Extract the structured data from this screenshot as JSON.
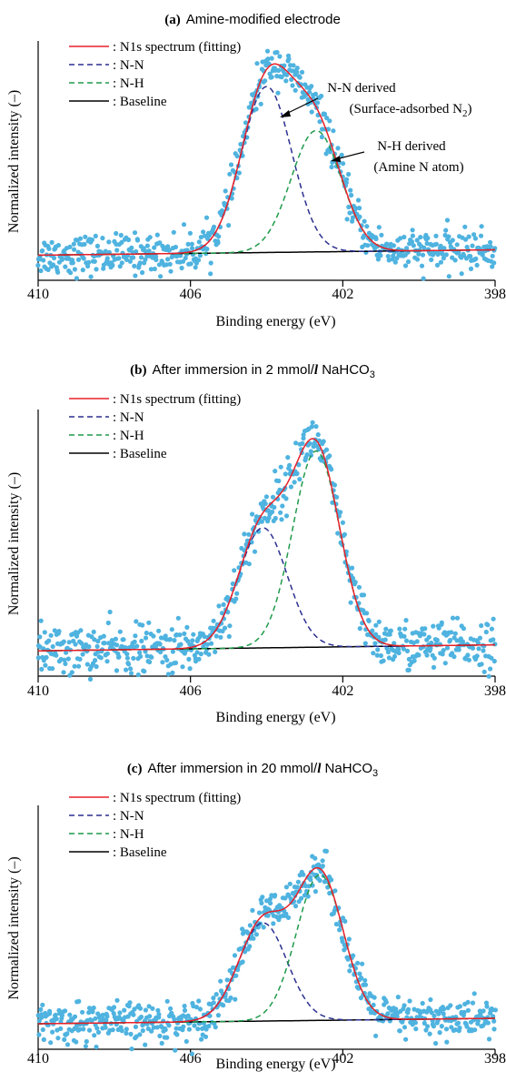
{
  "chart_data": [
    {
      "type": "scatter",
      "title_lead": "(a)",
      "title": "Amine-modified electrode",
      "title_sub": "",
      "xlabel": "Binding energy  (eV)",
      "ylabel": "Normalized intensity  (–)",
      "x_reversed": true,
      "xlim": [
        410,
        398
      ],
      "ylim": [
        0,
        1.25
      ],
      "xticks": [
        "410",
        "406",
        "402",
        "398"
      ],
      "legend": [
        {
          "label": ": N1s spectrum (fitting)",
          "color": "#e8202a",
          "dash": "solid"
        },
        {
          "label": ": N-N",
          "color": "#2b2f8f",
          "dash": "dashed"
        },
        {
          "label": ": N-H",
          "color": "#1f9a4a",
          "dash": "dashed"
        },
        {
          "label": ": Baseline",
          "color": "#000000",
          "dash": "solid"
        }
      ],
      "scatter_color": "#4fb3e0",
      "baseline": {
        "start": 0.1,
        "end": 0.13
      },
      "peaks": [
        {
          "name": "N-N",
          "center": 404.0,
          "height": 0.93,
          "fwhm": 1.55
        },
        {
          "name": "N-H",
          "center": 402.7,
          "height": 0.68,
          "fwhm": 1.55
        }
      ],
      "noise": 0.055,
      "annotations": [
        {
          "line1": "N-N derived",
          "line2": "(Surface-adsorbed N",
          "sub": "2",
          "line2_end": ")"
        },
        {
          "line1": "N-H derived",
          "line2": "(Amine N atom)",
          "sub": "",
          "line2_end": ""
        }
      ]
    },
    {
      "type": "scatter",
      "title_lead": "(b)",
      "title": "After immersion in 2 mmol/",
      "title_unit": "l",
      "title_tail": " NaHCO",
      "title_sub": "3",
      "xlabel": "Binding energy  (eV)",
      "ylabel": "Normalized intensity  (–)",
      "x_reversed": true,
      "xlim": [
        410,
        398
      ],
      "ylim": [
        0,
        1.25
      ],
      "xticks": [
        "410",
        "406",
        "402",
        "398"
      ],
      "legend": [
        {
          "label": ": N1s spectrum (fitting)",
          "color": "#e8202a",
          "dash": "solid"
        },
        {
          "label": ": N-N",
          "color": "#2b2f8f",
          "dash": "dashed"
        },
        {
          "label": ": N-H",
          "color": "#1f9a4a",
          "dash": "dashed"
        },
        {
          "label": ": Baseline",
          "color": "#000000",
          "dash": "solid"
        }
      ],
      "scatter_color": "#4fb3e0",
      "baseline": {
        "start": 0.09,
        "end": 0.12
      },
      "peaks": [
        {
          "name": "N-N",
          "center": 404.1,
          "height": 0.6,
          "fwhm": 1.5
        },
        {
          "name": "N-H",
          "center": 402.7,
          "height": 0.98,
          "fwhm": 1.45
        }
      ],
      "noise": 0.06,
      "annotations": []
    },
    {
      "type": "scatter",
      "title_lead": "(c)",
      "title": "After immersion in 20 mmol/",
      "title_unit": "l",
      "title_tail": " NaHCO",
      "title_sub": "3",
      "xlabel": "Binding energy  (eV)",
      "ylabel": "Normalized intensity  (–)",
      "x_reversed": true,
      "xlim": [
        410,
        398
      ],
      "ylim": [
        0,
        1.25
      ],
      "xticks": [
        "410",
        "406",
        "402",
        "398"
      ],
      "legend": [
        {
          "label": ": N1s spectrum (fitting)",
          "color": "#e8202a",
          "dash": "solid"
        },
        {
          "label": ": N-N",
          "color": "#2b2f8f",
          "dash": "dashed"
        },
        {
          "label": ": N-H",
          "color": "#1f9a4a",
          "dash": "dashed"
        },
        {
          "label": ": Baseline",
          "color": "#000000",
          "dash": "solid"
        }
      ],
      "scatter_color": "#4fb3e0",
      "baseline": {
        "start": 0.1,
        "end": 0.13
      },
      "peaks": [
        {
          "name": "N-N",
          "center": 404.1,
          "height": 0.54,
          "fwhm": 1.5
        },
        {
          "name": "N-H",
          "center": 402.6,
          "height": 0.8,
          "fwhm": 1.45
        }
      ],
      "noise": 0.055,
      "annotations": []
    }
  ]
}
